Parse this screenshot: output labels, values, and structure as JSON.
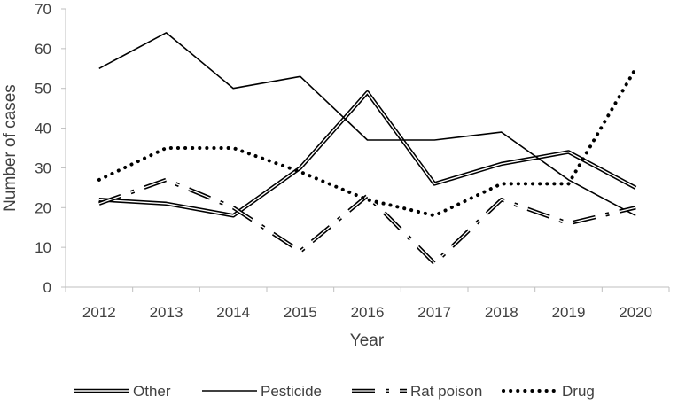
{
  "chart_data": {
    "type": "line",
    "title": "",
    "xlabel": "Year",
    "ylabel": "Number of cases",
    "ylim": [
      0,
      70
    ],
    "yticks": [
      0,
      10,
      20,
      30,
      40,
      50,
      60,
      70
    ],
    "grid": false,
    "legend_position": "bottom",
    "categories": [
      "2012",
      "2013",
      "2014",
      "2015",
      "2016",
      "2017",
      "2018",
      "2019",
      "2020"
    ],
    "series": [
      {
        "name": "Other",
        "style": "double",
        "values": [
          22,
          21,
          18,
          30,
          49,
          26,
          31,
          34,
          25
        ]
      },
      {
        "name": "Pesticide",
        "style": "solid",
        "values": [
          55,
          64,
          50,
          53,
          37,
          37,
          39,
          27,
          18
        ]
      },
      {
        "name": "Rat poison",
        "style": "dashdot",
        "values": [
          21,
          27,
          20,
          9,
          23,
          6,
          22,
          16,
          20
        ]
      },
      {
        "name": "Drug",
        "style": "dotted",
        "values": [
          27,
          35,
          35,
          29,
          22,
          18,
          26,
          26,
          55
        ]
      }
    ],
    "colors": {
      "line": "#000000",
      "axis": "#bfbfbf",
      "text": "#404040"
    }
  }
}
